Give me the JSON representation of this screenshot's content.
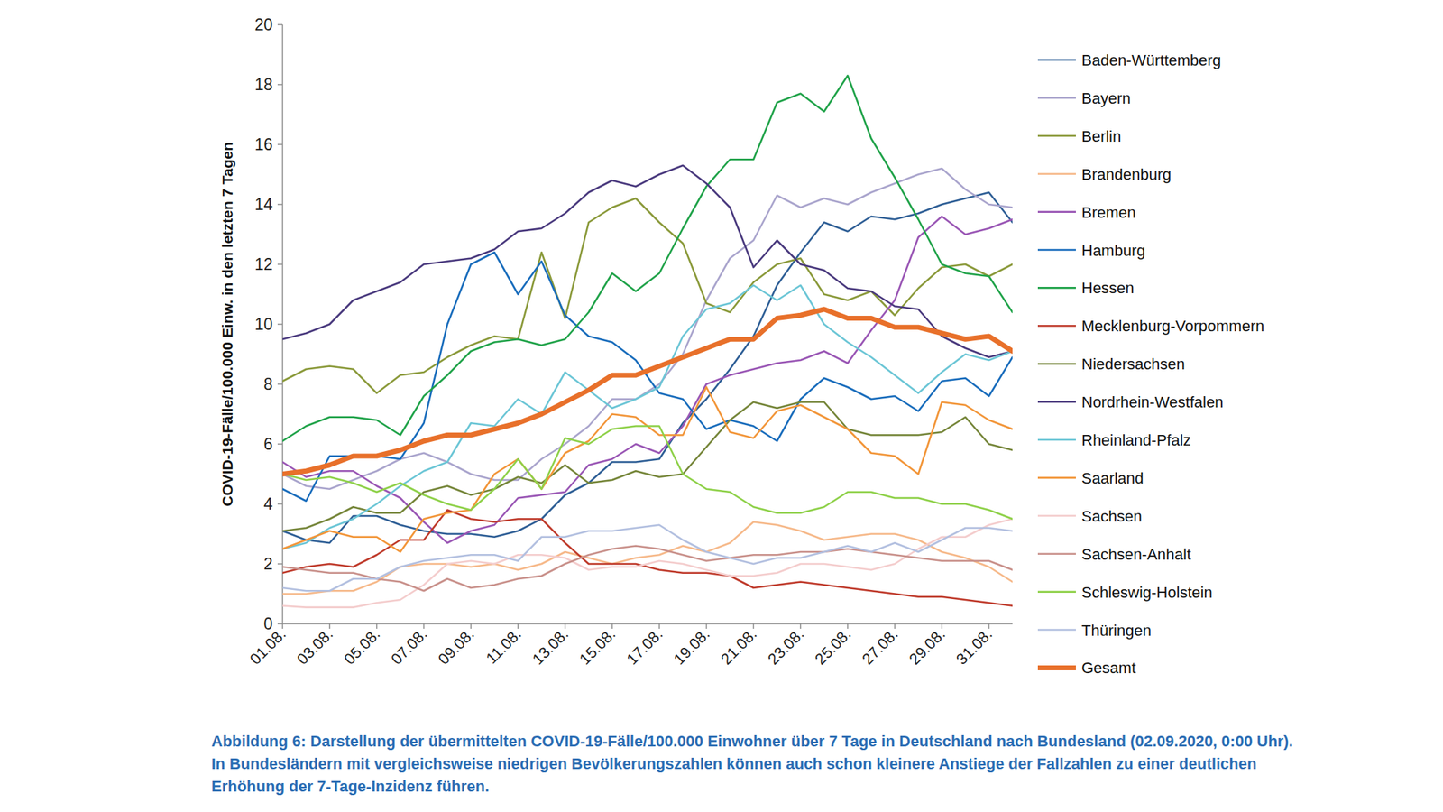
{
  "chart_data": {
    "type": "line",
    "y_label": "COVID-19-Fälle/100.000 Einw. in den letzten 7 Tagen",
    "caption": "Abbildung 6: Darstellung der übermittelten COVID-19-Fälle/100.000 Einwohner über 7 Tage in Deutschland nach Bundesland (02.09.2020, 0:00 Uhr). In Bundesländern mit vergleichsweise niedrigen Bevölkerungszahlen können auch schon kleinere Anstiege der Fallzahlen zu einer deutlichen Erhöhung der 7-Tage-Inzidenz führen.",
    "categories": [
      "01.08.",
      null,
      "03.08.",
      null,
      "05.08.",
      null,
      "07.08.",
      null,
      "09.08.",
      null,
      "11.08.",
      null,
      "13.08.",
      null,
      "15.08.",
      null,
      "17.08.",
      null,
      "19.08.",
      null,
      "21.08.",
      null,
      "23.08.",
      null,
      "25.08.",
      null,
      "27.08.",
      null,
      "29.08.",
      null,
      "31.08.",
      null
    ],
    "ylim": [
      0,
      20
    ],
    "yticks": [
      0,
      2,
      4,
      6,
      8,
      10,
      12,
      14,
      16,
      18,
      20
    ],
    "grid": false,
    "legend": "right",
    "series": [
      {
        "name": "Baden-Württemberg",
        "color": "#2f5f96",
        "values": [
          3.1,
          2.8,
          2.7,
          3.6,
          3.6,
          3.3,
          3.1,
          3.0,
          3.0,
          2.9,
          3.1,
          3.5,
          4.3,
          4.7,
          5.4,
          5.4,
          5.5,
          6.7,
          7.5,
          8.5,
          9.6,
          11.3,
          12.4,
          13.4,
          13.1,
          13.6,
          13.5,
          13.7,
          14.0,
          14.2,
          14.4,
          13.4
        ]
      },
      {
        "name": "Bayern",
        "color": "#aaa5cd",
        "values": [
          5.0,
          4.6,
          4.5,
          4.8,
          5.1,
          5.5,
          5.7,
          5.4,
          5.0,
          4.8,
          4.8,
          5.5,
          6.0,
          6.6,
          7.5,
          7.5,
          8.0,
          9.0,
          10.8,
          12.2,
          12.8,
          14.3,
          13.9,
          14.2,
          14.0,
          14.4,
          14.7,
          15.0,
          15.2,
          14.5,
          14.0,
          13.9
        ]
      },
      {
        "name": "Berlin",
        "color": "#8b9a3b",
        "values": [
          8.1,
          8.5,
          8.6,
          8.5,
          7.7,
          8.3,
          8.4,
          8.9,
          9.3,
          9.6,
          9.5,
          12.4,
          10.2,
          13.4,
          13.9,
          14.2,
          13.4,
          12.7,
          10.7,
          10.4,
          11.4,
          12.0,
          12.2,
          11.0,
          10.8,
          11.1,
          10.3,
          11.2,
          11.9,
          12.0,
          11.6,
          12.0
        ]
      },
      {
        "name": "Brandenburg",
        "color": "#f6b98a",
        "values": [
          1.0,
          1.0,
          1.1,
          1.1,
          1.4,
          1.9,
          2.0,
          2.0,
          1.9,
          2.0,
          1.8,
          2.0,
          2.4,
          2.2,
          2.0,
          2.2,
          2.3,
          2.6,
          2.4,
          2.7,
          3.4,
          3.3,
          3.1,
          2.8,
          2.9,
          3.0,
          3.0,
          2.8,
          2.4,
          2.2,
          1.9,
          1.4
        ]
      },
      {
        "name": "Bremen",
        "color": "#9a57b5",
        "values": [
          5.4,
          4.9,
          5.1,
          5.1,
          4.6,
          4.2,
          3.4,
          2.7,
          3.1,
          3.3,
          4.2,
          4.3,
          4.4,
          5.3,
          5.5,
          6.0,
          5.7,
          6.6,
          8.0,
          8.3,
          8.5,
          8.7,
          8.8,
          9.1,
          8.7,
          9.8,
          10.8,
          12.9,
          13.6,
          13.0,
          13.2,
          13.5
        ]
      },
      {
        "name": "Hamburg",
        "color": "#1a6dbc",
        "values": [
          4.5,
          4.1,
          5.6,
          5.6,
          5.6,
          5.5,
          6.7,
          10.0,
          12.0,
          12.4,
          11.0,
          12.1,
          10.3,
          9.6,
          9.4,
          8.8,
          7.7,
          7.5,
          6.5,
          6.8,
          6.6,
          6.1,
          7.5,
          8.2,
          7.9,
          7.5,
          7.6,
          7.1,
          8.1,
          8.2,
          7.6,
          8.9
        ]
      },
      {
        "name": "Hessen",
        "color": "#21a34a",
        "values": [
          6.1,
          6.6,
          6.9,
          6.9,
          6.8,
          6.3,
          7.6,
          8.3,
          9.1,
          9.4,
          9.5,
          9.3,
          9.5,
          10.4,
          11.7,
          11.1,
          11.7,
          13.2,
          14.6,
          15.5,
          15.5,
          17.4,
          17.7,
          17.1,
          18.3,
          16.2,
          14.9,
          13.5,
          12.0,
          11.7,
          11.6,
          10.4
        ]
      },
      {
        "name": "Mecklenburg-Vorpommern",
        "color": "#bf3b2c",
        "values": [
          1.7,
          1.9,
          2.0,
          1.9,
          2.3,
          2.8,
          2.8,
          3.8,
          3.5,
          3.4,
          3.5,
          3.5,
          2.7,
          2.0,
          2.0,
          2.0,
          1.8,
          1.7,
          1.7,
          1.6,
          1.2,
          1.3,
          1.4,
          1.3,
          1.2,
          1.1,
          1.0,
          0.9,
          0.9,
          0.8,
          0.7,
          0.6
        ]
      },
      {
        "name": "Niedersachsen",
        "color": "#76863a",
        "values": [
          3.1,
          3.2,
          3.5,
          3.9,
          3.7,
          3.7,
          4.4,
          4.6,
          4.3,
          4.5,
          4.9,
          4.7,
          5.3,
          4.7,
          4.8,
          5.1,
          4.9,
          5.0,
          5.9,
          6.8,
          7.4,
          7.2,
          7.4,
          7.4,
          6.5,
          6.3,
          6.3,
          6.3,
          6.4,
          6.9,
          6.0,
          5.8
        ]
      },
      {
        "name": "Nordrhein-Westfalen",
        "color": "#4a3a7e",
        "values": [
          9.5,
          9.7,
          10.0,
          10.8,
          11.1,
          11.4,
          12.0,
          12.1,
          12.2,
          12.5,
          13.1,
          13.2,
          13.7,
          14.4,
          14.8,
          14.6,
          15.0,
          15.3,
          14.7,
          13.9,
          11.9,
          12.8,
          12.0,
          11.8,
          11.2,
          11.1,
          10.6,
          10.5,
          9.6,
          9.2,
          8.9,
          9.1
        ]
      },
      {
        "name": "Rheinland-Pfalz",
        "color": "#6cc6d6",
        "values": [
          2.5,
          2.7,
          3.2,
          3.5,
          4.0,
          4.6,
          5.1,
          5.4,
          6.7,
          6.6,
          7.5,
          7.0,
          8.4,
          7.8,
          7.2,
          7.5,
          7.9,
          9.6,
          10.5,
          10.7,
          11.3,
          10.8,
          11.3,
          10.0,
          9.4,
          8.9,
          8.3,
          7.7,
          8.4,
          9.0,
          8.8,
          9.1
        ]
      },
      {
        "name": "Saarland",
        "color": "#f2963a",
        "values": [
          2.5,
          2.8,
          3.1,
          2.9,
          2.9,
          2.4,
          3.5,
          3.7,
          3.8,
          5.0,
          5.5,
          4.5,
          5.7,
          6.1,
          7.0,
          6.9,
          6.3,
          6.3,
          7.9,
          6.4,
          6.2,
          7.1,
          7.3,
          6.9,
          6.5,
          5.7,
          5.6,
          5.0,
          7.4,
          7.3,
          6.8,
          6.5
        ]
      },
      {
        "name": "Sachsen",
        "color": "#f4cdcd",
        "values": [
          0.6,
          0.55,
          0.55,
          0.55,
          0.7,
          0.8,
          1.3,
          2.0,
          2.1,
          2.0,
          2.3,
          2.3,
          2.2,
          1.8,
          1.9,
          1.9,
          2.1,
          2.0,
          1.8,
          1.6,
          1.6,
          1.7,
          2.0,
          2.0,
          1.9,
          1.8,
          2.0,
          2.5,
          2.9,
          2.9,
          3.3,
          3.5
        ]
      },
      {
        "name": "Sachsen-Anhalt",
        "color": "#c9918b",
        "values": [
          1.9,
          1.8,
          1.7,
          1.7,
          1.5,
          1.4,
          1.1,
          1.5,
          1.2,
          1.3,
          1.5,
          1.6,
          2.0,
          2.3,
          2.5,
          2.6,
          2.5,
          2.3,
          2.1,
          2.2,
          2.3,
          2.3,
          2.4,
          2.4,
          2.5,
          2.4,
          2.3,
          2.2,
          2.1,
          2.1,
          2.1,
          1.8
        ]
      },
      {
        "name": "Schleswig-Holstein",
        "color": "#8fd14a",
        "values": [
          5.0,
          4.8,
          4.9,
          4.7,
          4.4,
          4.7,
          4.3,
          4.0,
          3.8,
          4.5,
          5.5,
          4.5,
          6.2,
          6.0,
          6.5,
          6.6,
          6.6,
          5.0,
          4.5,
          4.4,
          3.9,
          3.7,
          3.7,
          3.9,
          4.4,
          4.4,
          4.2,
          4.2,
          4.0,
          4.0,
          3.8,
          3.5
        ]
      },
      {
        "name": "Thüringen",
        "color": "#b3c0e0",
        "values": [
          1.2,
          1.1,
          1.1,
          1.5,
          1.5,
          1.9,
          2.1,
          2.2,
          2.3,
          2.3,
          2.1,
          2.9,
          2.9,
          3.1,
          3.1,
          3.2,
          3.3,
          2.8,
          2.4,
          2.2,
          2.0,
          2.2,
          2.2,
          2.4,
          2.6,
          2.4,
          2.7,
          2.4,
          2.8,
          3.2,
          3.2,
          3.1
        ]
      },
      {
        "name": "Gesamt",
        "color": "#e8702a",
        "line_style": "thick",
        "values": [
          5.0,
          5.1,
          5.3,
          5.6,
          5.6,
          5.8,
          6.1,
          6.3,
          6.3,
          6.5,
          6.7,
          7.0,
          7.4,
          7.8,
          8.3,
          8.3,
          8.6,
          8.9,
          9.2,
          9.5,
          9.5,
          10.2,
          10.3,
          10.5,
          10.2,
          10.2,
          9.9,
          9.9,
          9.7,
          9.5,
          9.6,
          9.1
        ]
      }
    ]
  }
}
